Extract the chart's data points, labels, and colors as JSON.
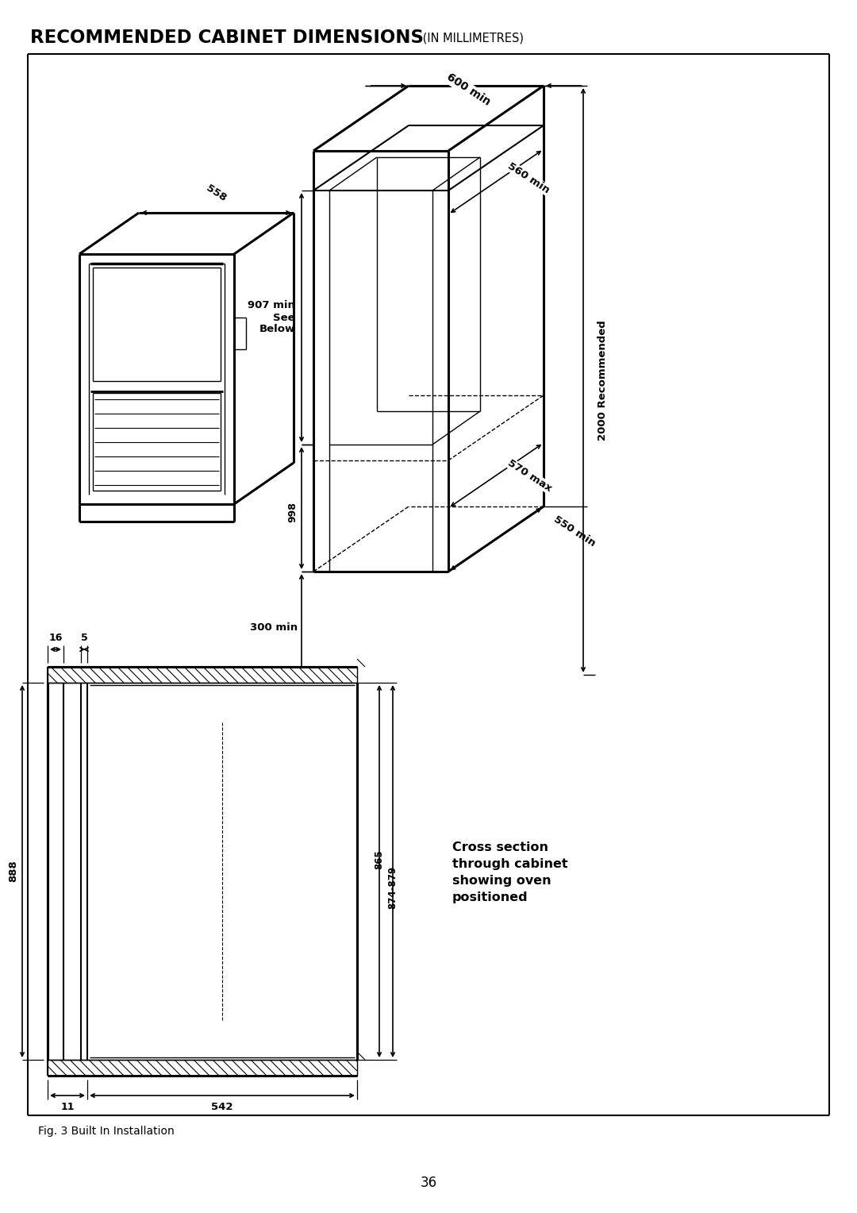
{
  "title_bold": "RECOMMENDED CABINET DIMENSIONS",
  "title_small": " (IN MILLIMETRES)",
  "page_number": "36",
  "fig_caption": "Fig. 3 Built In Installation",
  "cross_section_text": "Cross section\nthrough cabinet\nshowing oven\npositioned",
  "dim_600": "600 min",
  "dim_560": "560 min",
  "dim_570": "570 max",
  "dim_550": "550 min",
  "dim_907": "907 min\nSee\nBelow",
  "dim_998": "998",
  "dim_300": "300 min",
  "dim_558": "558",
  "dim_2000": "2000 Recommended",
  "dim_888": "888",
  "dim_865": "865",
  "dim_874": "874-879",
  "dim_16": "16",
  "dim_5": "5",
  "dim_11": "11",
  "dim_542": "542",
  "bg_color": "#ffffff",
  "line_color": "#000000"
}
